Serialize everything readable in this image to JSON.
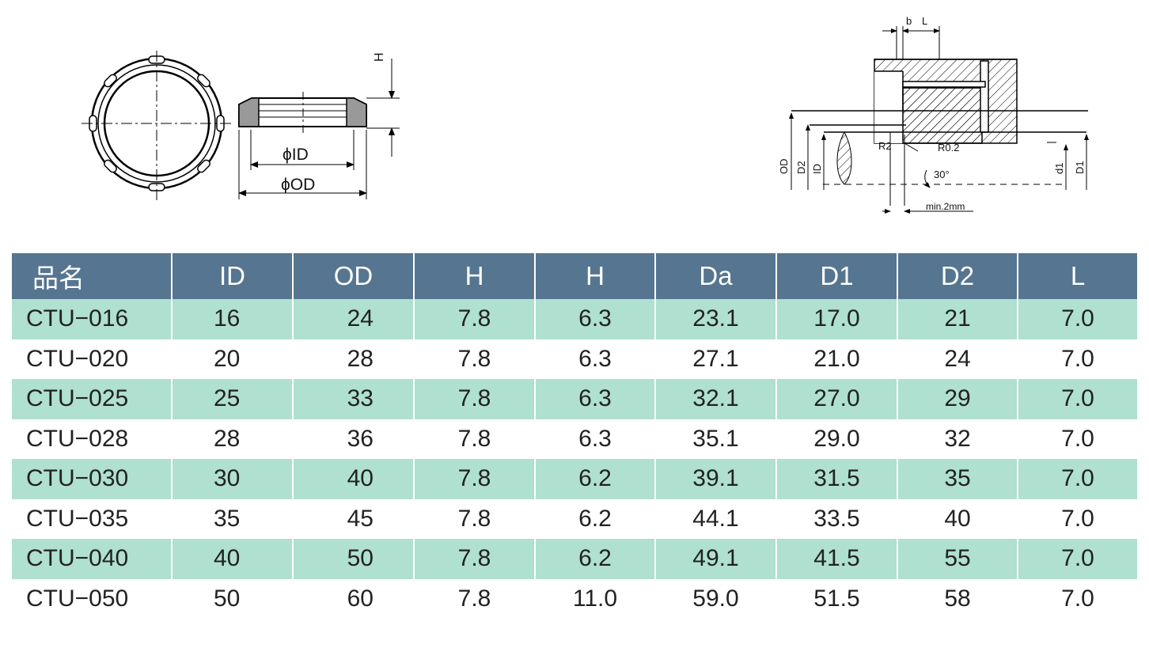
{
  "drawing_left": {
    "label_h": "H",
    "label_id": "ϕID",
    "label_od": "ϕOD"
  },
  "drawing_right": {
    "label_b": "b",
    "label_l": "L",
    "label_od": "OD",
    "label_d2": "D2",
    "label_id": "ID",
    "label_r2": "R2",
    "label_r02": "R0.2",
    "label_30": "30°",
    "label_d1_small": "d1",
    "label_d1_big": "D1",
    "label_min": "min.2mm"
  },
  "table": {
    "headers": [
      "品名",
      "ID",
      "OD",
      "H",
      "H",
      "Da",
      "D1",
      "D2",
      "L"
    ],
    "rows": [
      [
        "CTU−016",
        "16",
        "24",
        "7.8",
        "6.3",
        "23.1",
        "17.0",
        "21",
        "7.0"
      ],
      [
        "CTU−020",
        "20",
        "28",
        "7.8",
        "6.3",
        "27.1",
        "21.0",
        "24",
        "7.0"
      ],
      [
        "CTU−025",
        "25",
        "33",
        "7.8",
        "6.3",
        "32.1",
        "27.0",
        "29",
        "7.0"
      ],
      [
        "CTU−028",
        "28",
        "36",
        "7.8",
        "6.3",
        "35.1",
        "29.0",
        "32",
        "7.0"
      ],
      [
        "CTU−030",
        "30",
        "40",
        "7.8",
        "6.2",
        "39.1",
        "31.5",
        "35",
        "7.0"
      ],
      [
        "CTU−035",
        "35",
        "45",
        "7.8",
        "6.2",
        "44.1",
        "33.5",
        "40",
        "7.0"
      ],
      [
        "CTU−040",
        "40",
        "50",
        "7.8",
        "6.2",
        "49.1",
        "41.5",
        "55",
        "7.0"
      ],
      [
        "CTU−050",
        "50",
        "60",
        "7.8",
        "11.0",
        "59.0",
        "51.5",
        "58",
        "7.0"
      ]
    ]
  },
  "colors": {
    "header_bg": "#567590",
    "row_alt_bg": "#afe0d0"
  }
}
